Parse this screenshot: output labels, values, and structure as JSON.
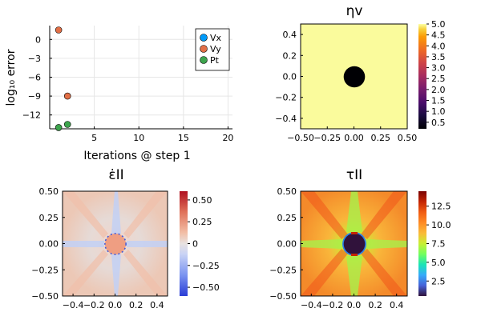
{
  "chart_data": [
    {
      "type": "scatter",
      "title": "",
      "xlabel": "Iterations @ step 1",
      "ylabel": "log₁₀ error",
      "xlim": [
        0,
        20.5
      ],
      "ylim": [
        -14.2,
        2.2
      ],
      "xticks": [
        5,
        10,
        15,
        20
      ],
      "xtick_labels": [
        "5",
        "10",
        "15",
        "20"
      ],
      "yticks": [
        0,
        -3,
        -6,
        -9,
        -12
      ],
      "ytick_labels": [
        "0",
        "−3",
        "−6",
        "−9",
        "−12"
      ],
      "grid": true,
      "legend_position": "top-right",
      "series": [
        {
          "name": "Vx",
          "color": "#009af9",
          "points": []
        },
        {
          "name": "Vy",
          "color": "#e26f46",
          "points": [
            [
              1,
              1.5
            ],
            [
              2,
              -9.0
            ]
          ]
        },
        {
          "name": "Pt",
          "color": "#3da44d",
          "points": [
            [
              1,
              -14.0
            ],
            [
              2,
              -13.5
            ]
          ]
        }
      ]
    },
    {
      "type": "heatmap",
      "title": "ηv",
      "xlim": [
        -0.5,
        0.5
      ],
      "ylim": [
        -0.5,
        0.5
      ],
      "xticks": [
        -0.5,
        -0.25,
        0,
        0.25,
        0.5
      ],
      "xtick_labels": [
        "−0.50",
        "−0.25",
        "0.00",
        "0.25",
        "0.50"
      ],
      "yticks": [
        0.4,
        0.2,
        0,
        -0.2,
        -0.4
      ],
      "ytick_labels": [
        "0.4",
        "0.2",
        "0.0",
        "−0.2",
        "−0.4"
      ],
      "colormap": "inferno",
      "clim": [
        0.2,
        5.0
      ],
      "cbar_ticks": [
        5.0,
        4.5,
        4.0,
        3.5,
        3.0,
        2.5,
        2.0,
        1.5,
        1.0,
        0.5
      ],
      "cbar_tick_labels": [
        "5.0",
        "4.5",
        "4.0",
        "3.5",
        "3.0",
        "2.5",
        "2.0",
        "1.5",
        "1.0",
        "0.5"
      ],
      "background_value": 5.0,
      "inclusion": {
        "shape": "circle",
        "radius": 0.1,
        "value": 0.2
      }
    },
    {
      "type": "heatmap",
      "title": "ε̇II",
      "xlim": [
        -0.5,
        0.5
      ],
      "ylim": [
        -0.5,
        0.5
      ],
      "xticks": [
        -0.4,
        -0.2,
        0,
        0.2,
        0.4
      ],
      "xtick_labels": [
        "−0.4",
        "−0.2",
        "0.0",
        "0.2",
        "0.4"
      ],
      "yticks": [
        0.5,
        0.25,
        0,
        -0.25,
        -0.5
      ],
      "ytick_labels": [
        "0.50",
        "0.25",
        "0.00",
        "−0.25",
        "−0.50"
      ],
      "colormap": "balance",
      "clim": [
        -0.6,
        0.6
      ],
      "cbar_ticks": [
        0.5,
        0.25,
        0,
        -0.25,
        -0.5
      ],
      "cbar_tick_labels": [
        "0.50",
        "0.25",
        "0",
        "−0.25",
        "−0.50"
      ],
      "background_value": 0.0,
      "inclusion": {
        "shape": "circle",
        "radius": 0.1,
        "value": 0.3
      }
    },
    {
      "type": "heatmap",
      "title": "τII",
      "xlim": [
        -0.5,
        0.5
      ],
      "ylim": [
        -0.5,
        0.5
      ],
      "xticks": [
        -0.4,
        -0.2,
        0,
        0.2,
        0.4
      ],
      "xtick_labels": [
        "−0.4",
        "−0.2",
        "0.0",
        "0.2",
        "0.4"
      ],
      "yticks": [
        0.5,
        0.25,
        0,
        -0.25,
        -0.5
      ],
      "ytick_labels": [
        "0.50",
        "0.25",
        "0.00",
        "−0.25",
        "−0.50"
      ],
      "colormap": "turbo",
      "clim": [
        0.5,
        14.5
      ],
      "cbar_ticks": [
        12.5,
        10.0,
        7.5,
        5.0,
        2.5
      ],
      "cbar_tick_labels": [
        "12.5",
        "10.0",
        "7.5",
        "5.0",
        "2.5"
      ],
      "background_value": 11.5,
      "inclusion": {
        "shape": "circle",
        "radius": 0.1,
        "value": 0.8
      }
    }
  ]
}
